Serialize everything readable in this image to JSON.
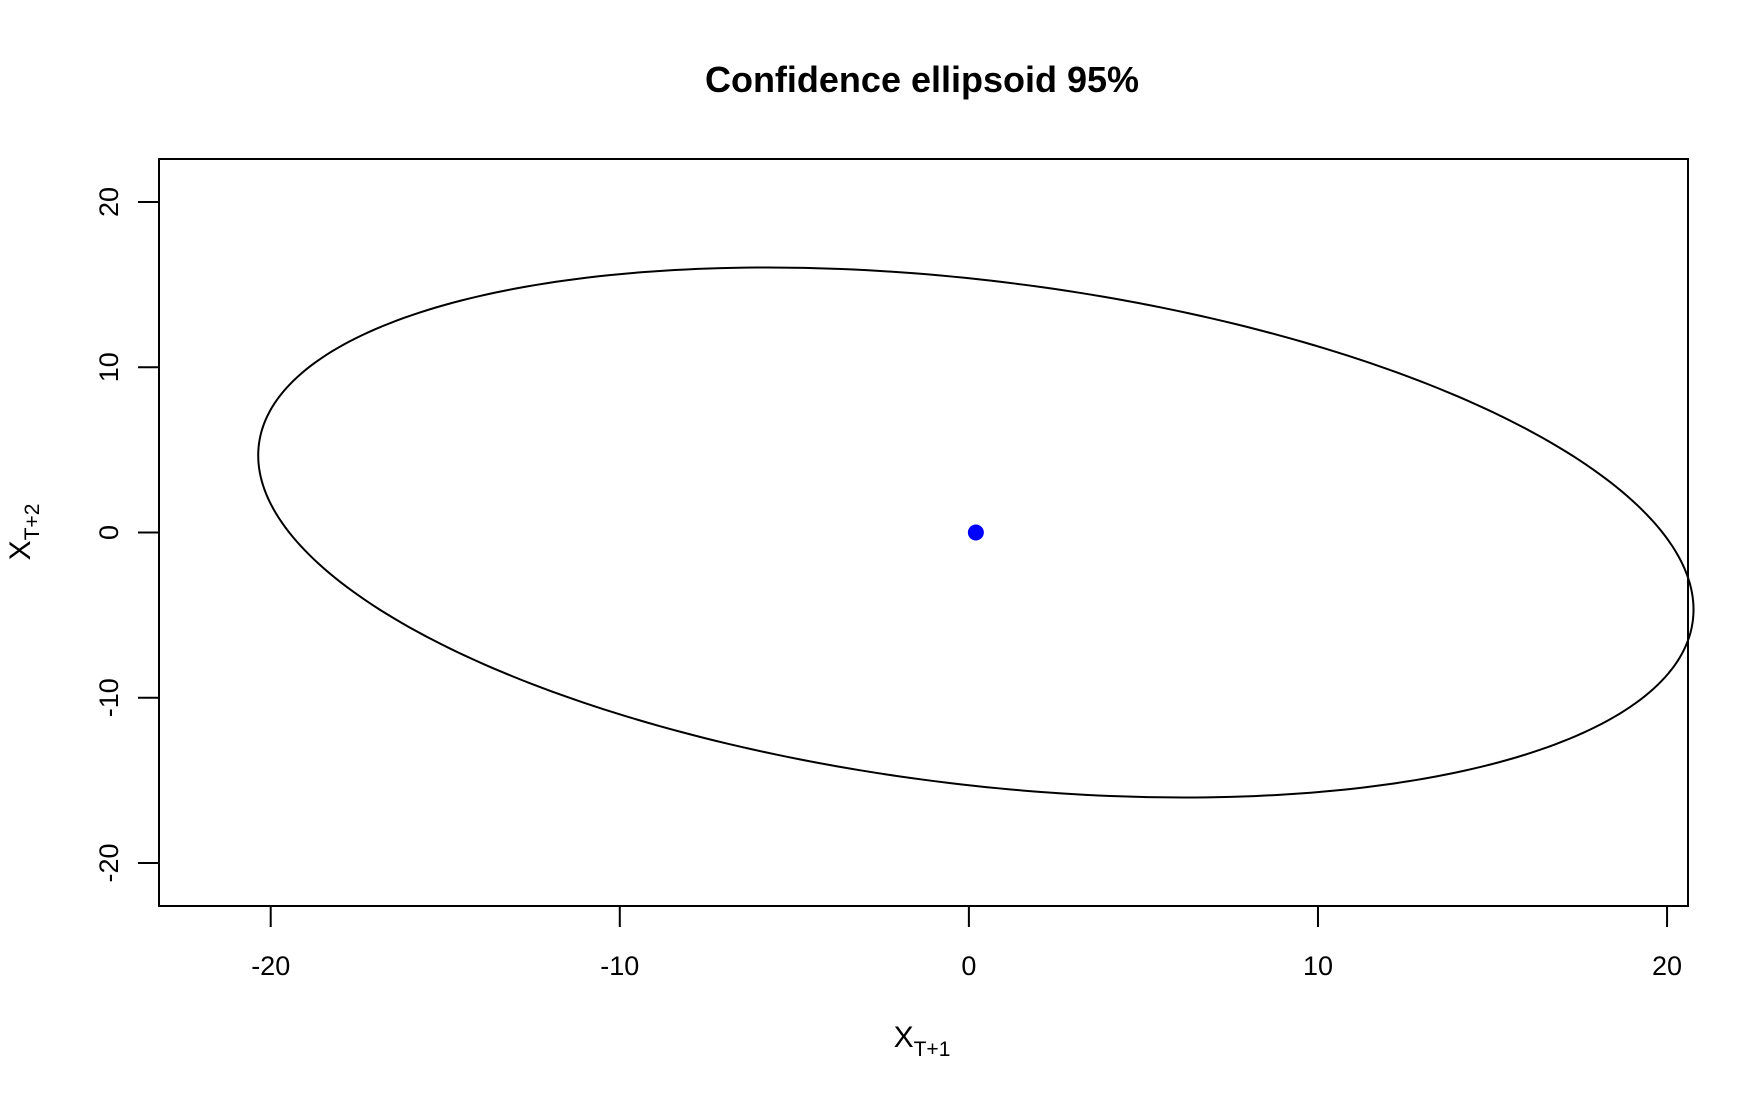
{
  "chart_data": {
    "type": "scatter",
    "title": "Confidence ellipsoid 95%",
    "xlabel": {
      "base": "X",
      "subscript": "T+1"
    },
    "ylabel": {
      "base": "X",
      "subscript": "T+2"
    },
    "xlim": [
      -23.2,
      20.6
    ],
    "ylim": [
      -22.6,
      22.6
    ],
    "x_ticks": [
      -20,
      -10,
      0,
      10,
      20
    ],
    "y_ticks": [
      -20,
      -10,
      0,
      10,
      20
    ],
    "x_tick_labels": [
      "-20",
      "-10",
      "0",
      "10",
      "20"
    ],
    "y_tick_labels": [
      "-20",
      "-10",
      "0",
      "10",
      "20"
    ],
    "grid": false,
    "ellipse": {
      "center": [
        0.2,
        0
      ],
      "semi_major": 21.6,
      "semi_minor": 14.6,
      "rotation_deg": -24.6
    },
    "points": [
      {
        "x": 0.2,
        "y": 0,
        "color": "#0000ff"
      }
    ],
    "line_color": "#000000"
  }
}
